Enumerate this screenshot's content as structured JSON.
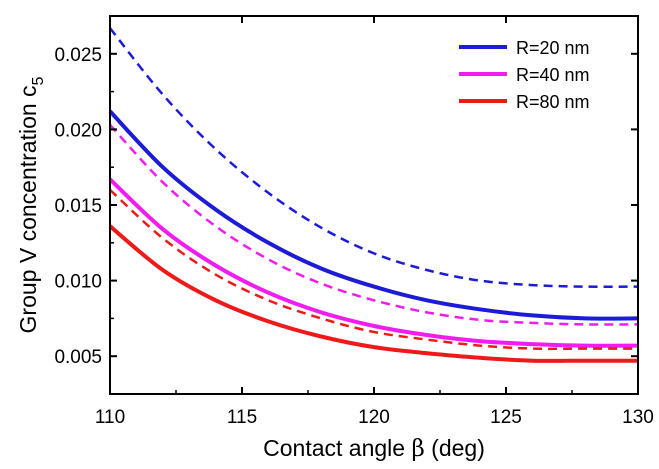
{
  "chart_data": {
    "type": "line",
    "xlabel_prefix": "Contact angle ",
    "xlabel_symbol": "β",
    "xlabel_suffix": " (deg)",
    "ylabel": "Group V concentration c",
    "ylabel_subscript": "5",
    "xlim": [
      110,
      130
    ],
    "ylim": [
      0.0025,
      0.0275
    ],
    "xticks": [
      110,
      115,
      120,
      125,
      130
    ],
    "xtick_labels": [
      "110",
      "115",
      "120",
      "125",
      "130"
    ],
    "yticks": [
      0.005,
      0.01,
      0.015,
      0.02,
      0.025
    ],
    "ytick_labels": [
      "0.005",
      "0.010",
      "0.015",
      "0.020",
      "0.025"
    ],
    "grid": false,
    "legend_position": "top-right",
    "x": [
      110,
      112,
      114,
      116,
      118,
      120,
      122,
      124,
      126,
      128,
      130
    ],
    "series": [
      {
        "name": "R=20 nm",
        "color": "#1c1cd6",
        "dash": "solid",
        "values": [
          0.0212,
          0.0175,
          0.0147,
          0.0125,
          0.0108,
          0.0096,
          0.0087,
          0.0081,
          0.0077,
          0.0075,
          0.0075
        ]
      },
      {
        "name": "R=40 nm",
        "color": "#f01cf0",
        "dash": "solid",
        "values": [
          0.0167,
          0.0134,
          0.011,
          0.0092,
          0.0079,
          0.007,
          0.0064,
          0.006,
          0.0058,
          0.0057,
          0.0057
        ]
      },
      {
        "name": "R=80 nm",
        "color": "#ee1a1a",
        "dash": "solid",
        "values": [
          0.0136,
          0.0107,
          0.0087,
          0.0073,
          0.0063,
          0.0056,
          0.0052,
          0.0049,
          0.0047,
          0.0047,
          0.0047
        ]
      },
      {
        "name": "",
        "color": "#1c1cd6",
        "dash": "dashed",
        "values": [
          0.0267,
          0.0223,
          0.0187,
          0.0158,
          0.0135,
          0.0118,
          0.0107,
          0.01,
          0.0097,
          0.0096,
          0.0096
        ]
      },
      {
        "name": "",
        "color": "#f01cf0",
        "dash": "dashed",
        "values": [
          0.0203,
          0.0165,
          0.0136,
          0.0114,
          0.0098,
          0.0087,
          0.0079,
          0.0074,
          0.0072,
          0.0071,
          0.0071
        ]
      },
      {
        "name": "",
        "color": "#ee1a1a",
        "dash": "dashed",
        "values": [
          0.016,
          0.0128,
          0.0104,
          0.0087,
          0.0075,
          0.0066,
          0.0061,
          0.0057,
          0.0055,
          0.0055,
          0.0055
        ]
      }
    ]
  }
}
